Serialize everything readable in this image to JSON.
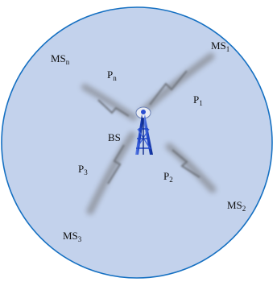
{
  "colors": {
    "cell_fill": "#c3d2ec",
    "cell_stroke": "#1570c2",
    "tower": "#1f45c8",
    "beam": "#8e939c"
  },
  "labels": {
    "bs": "BS",
    "ms1": {
      "base": "MS",
      "sub": "1"
    },
    "ms2": {
      "base": "MS",
      "sub": "2"
    },
    "ms3": {
      "base": "MS",
      "sub": "3"
    },
    "msn": {
      "base": "MS",
      "sub": "n"
    },
    "p1": {
      "base": "P",
      "sub": "1"
    },
    "p2": {
      "base": "P",
      "sub": "2"
    },
    "p3": {
      "base": "P",
      "sub": "3"
    },
    "pn": {
      "base": "P",
      "sub": "n"
    }
  },
  "icons": {
    "tower": "antenna-tower-icon",
    "link": "lightning-bolt-icon"
  }
}
